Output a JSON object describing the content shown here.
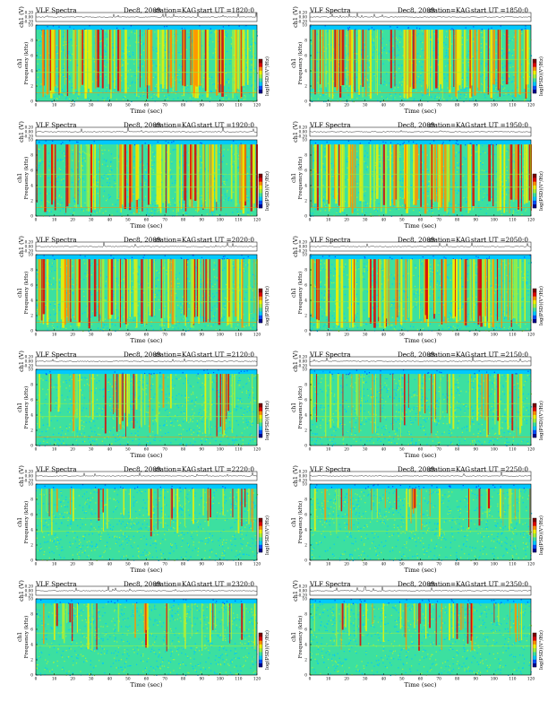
{
  "header": {
    "instrument": "VLF Spectra",
    "date": "Dec8, 2009",
    "station": "station=KAG",
    "ut_prefix": "start  UT  ="
  },
  "labels": {
    "waveform_axis": "ch1 (V)",
    "freq_axis": "Frequency (kHz)",
    "channel_tag": "ch1",
    "time_axis": "Time  (sec)",
    "colorbar_label": "log(PSD)(V²/Hz)"
  },
  "colors": {
    "colormap": [
      "#00008f",
      "#0050ff",
      "#00c8ff",
      "#3ce0a0",
      "#a0f03c",
      "#f0f000",
      "#ff9000",
      "#e00000",
      "#800000"
    ],
    "background": "#ffffff",
    "frame": "#000000"
  },
  "chart_data": [
    {
      "type": "heatmap",
      "start_ut": "1820:0",
      "activity": "high",
      "x_range": [
        0,
        120
      ],
      "y_range": [
        0,
        10
      ],
      "xticks": [
        0,
        10,
        20,
        30,
        40,
        50,
        60,
        70,
        80,
        90,
        100,
        110,
        120
      ],
      "yticks": [
        0,
        2,
        4,
        6,
        8,
        10
      ],
      "waveform_ticks": [
        "0.20",
        "0.00",
        "-0.20"
      ]
    },
    {
      "type": "heatmap",
      "start_ut": "1850:0",
      "activity": "high",
      "x_range": [
        0,
        120
      ],
      "y_range": [
        0,
        10
      ],
      "xticks": [
        0,
        10,
        20,
        30,
        40,
        50,
        60,
        70,
        80,
        90,
        100,
        110,
        120
      ],
      "yticks": [
        0,
        2,
        4,
        6,
        8,
        10
      ],
      "waveform_ticks": [
        "0.20",
        "0.00",
        "-0.20"
      ]
    },
    {
      "type": "heatmap",
      "start_ut": "1920:0",
      "activity": "high",
      "x_range": [
        0,
        120
      ],
      "y_range": [
        0,
        10
      ],
      "xticks": [
        0,
        10,
        20,
        30,
        40,
        50,
        60,
        70,
        80,
        90,
        100,
        110,
        120
      ],
      "yticks": [
        0,
        2,
        4,
        6,
        8,
        10
      ],
      "waveform_ticks": [
        "0.20",
        "0.00",
        "-0.20"
      ]
    },
    {
      "type": "heatmap",
      "start_ut": "1950:0",
      "activity": "high",
      "x_range": [
        0,
        120
      ],
      "y_range": [
        0,
        10
      ],
      "xticks": [
        0,
        10,
        20,
        30,
        40,
        50,
        60,
        70,
        80,
        90,
        100,
        110,
        120
      ],
      "yticks": [
        0,
        2,
        4,
        6,
        8,
        10
      ],
      "waveform_ticks": [
        "0.20",
        "0.00",
        "-0.20"
      ]
    },
    {
      "type": "heatmap",
      "start_ut": "2020:0",
      "activity": "high",
      "x_range": [
        0,
        120
      ],
      "y_range": [
        0,
        10
      ],
      "xticks": [
        0,
        10,
        20,
        30,
        40,
        50,
        60,
        70,
        80,
        90,
        100,
        110,
        120
      ],
      "yticks": [
        0,
        2,
        4,
        6,
        8,
        10
      ],
      "waveform_ticks": [
        "0.20",
        "0.00",
        "-0.20"
      ]
    },
    {
      "type": "heatmap",
      "start_ut": "2050:0",
      "activity": "high",
      "x_range": [
        0,
        120
      ],
      "y_range": [
        0,
        10
      ],
      "xticks": [
        0,
        10,
        20,
        30,
        40,
        50,
        60,
        70,
        80,
        90,
        100,
        110,
        120
      ],
      "yticks": [
        0,
        2,
        4,
        6,
        8,
        10
      ],
      "waveform_ticks": [
        "0.20",
        "0.00",
        "-0.20"
      ]
    },
    {
      "type": "heatmap",
      "start_ut": "2120:0",
      "activity": "moderate",
      "x_range": [
        0,
        120
      ],
      "y_range": [
        0,
        10
      ],
      "xticks": [
        0,
        10,
        20,
        30,
        40,
        50,
        60,
        70,
        80,
        90,
        100,
        110,
        120
      ],
      "yticks": [
        0,
        2,
        4,
        6,
        8,
        10
      ],
      "waveform_ticks": [
        "0.20",
        "0.00",
        "-0.20"
      ]
    },
    {
      "type": "heatmap",
      "start_ut": "2150:0",
      "activity": "moderate",
      "x_range": [
        0,
        120
      ],
      "y_range": [
        0,
        10
      ],
      "xticks": [
        0,
        10,
        20,
        30,
        40,
        50,
        60,
        70,
        80,
        90,
        100,
        110,
        120
      ],
      "yticks": [
        0,
        2,
        4,
        6,
        8,
        10
      ],
      "waveform_ticks": [
        "0.20",
        "0.00",
        "-0.20"
      ]
    },
    {
      "type": "heatmap",
      "start_ut": "2220:0",
      "activity": "low",
      "x_range": [
        0,
        120
      ],
      "y_range": [
        0,
        10
      ],
      "xticks": [
        0,
        10,
        20,
        30,
        40,
        50,
        60,
        70,
        80,
        90,
        100,
        110,
        120
      ],
      "yticks": [
        0,
        2,
        4,
        6,
        8,
        10
      ],
      "waveform_ticks": [
        "0.20",
        "0.00",
        "-0.20"
      ]
    },
    {
      "type": "heatmap",
      "start_ut": "2250:0",
      "activity": "low",
      "x_range": [
        0,
        120
      ],
      "y_range": [
        0,
        10
      ],
      "xticks": [
        0,
        10,
        20,
        30,
        40,
        50,
        60,
        70,
        80,
        90,
        100,
        110,
        120
      ],
      "yticks": [
        0,
        2,
        4,
        6,
        8,
        10
      ],
      "waveform_ticks": [
        "0.20",
        "0.00",
        "-0.20"
      ]
    },
    {
      "type": "heatmap",
      "start_ut": "2320:0",
      "activity": "low",
      "x_range": [
        0,
        120
      ],
      "y_range": [
        0,
        10
      ],
      "xticks": [
        0,
        10,
        20,
        30,
        40,
        50,
        60,
        70,
        80,
        90,
        100,
        110,
        120
      ],
      "yticks": [
        0,
        2,
        4,
        6,
        8,
        10
      ],
      "waveform_ticks": [
        "0.20",
        "0.00",
        "-0.20"
      ]
    },
    {
      "type": "heatmap",
      "start_ut": "2350:0",
      "activity": "low",
      "x_range": [
        0,
        120
      ],
      "y_range": [
        0,
        10
      ],
      "xticks": [
        0,
        10,
        20,
        30,
        40,
        50,
        60,
        70,
        80,
        90,
        100,
        110,
        120
      ],
      "yticks": [
        0,
        2,
        4,
        6,
        8,
        10
      ],
      "waveform_ticks": [
        "0.20",
        "0.00",
        "-0.20"
      ]
    }
  ]
}
